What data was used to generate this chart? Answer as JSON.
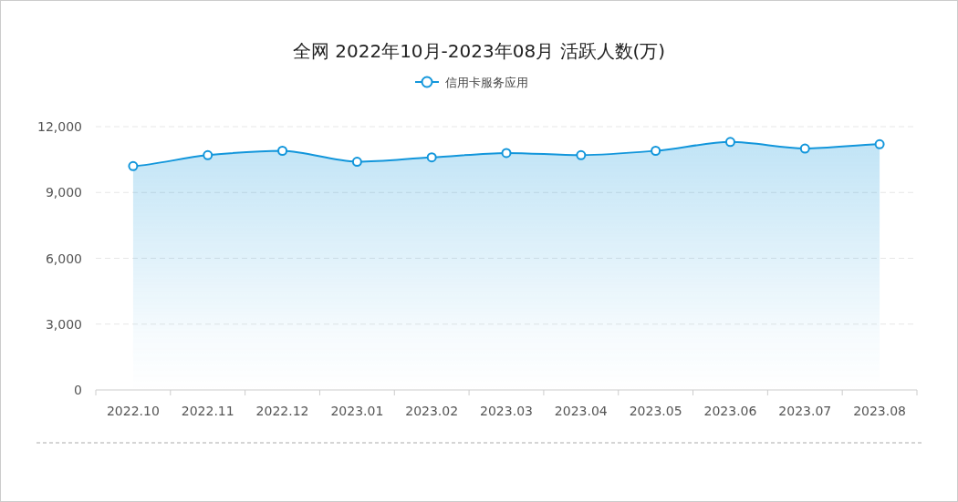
{
  "chart_data": {
    "type": "area",
    "title": "全网 2022年10月-2023年08月 活跃人数(万)",
    "categories": [
      "2022.10",
      "2022.11",
      "2022.12",
      "2023.01",
      "2023.02",
      "2023.03",
      "2023.04",
      "2023.05",
      "2023.06",
      "2023.07",
      "2023.08"
    ],
    "series": [
      {
        "name": "信用卡服务应用",
        "color": "#1296db",
        "values": [
          10200,
          10700,
          10900,
          10400,
          10600,
          10800,
          10700,
          10900,
          11300,
          11000,
          11200
        ]
      }
    ],
    "ylim": [
      0,
      12000
    ],
    "yticks": [
      {
        "value": 0,
        "label": "0"
      },
      {
        "value": 3000,
        "label": "3,000"
      },
      {
        "value": 6000,
        "label": "6,000"
      },
      {
        "value": 9000,
        "label": "9,000"
      },
      {
        "value": 12000,
        "label": "12,000"
      }
    ],
    "grid": "y",
    "legend": "top",
    "marker": "circle",
    "line_style": "solid"
  }
}
